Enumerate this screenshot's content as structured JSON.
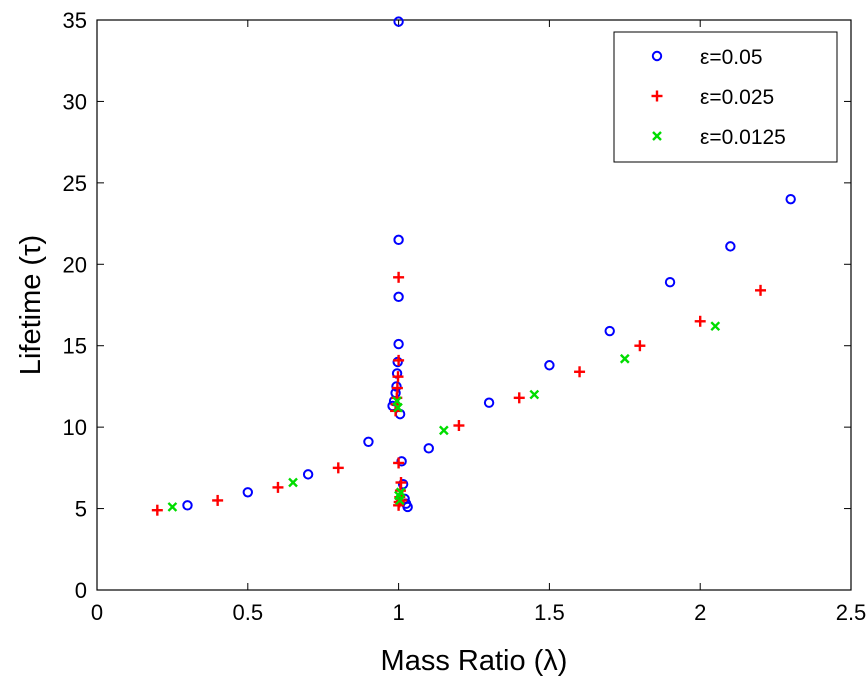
{
  "chart_data": {
    "type": "scatter",
    "title": "",
    "xlabel": "Mass Ratio (λ)",
    "ylabel": "Lifetime (τ)",
    "xlim": [
      0,
      2.5
    ],
    "ylim": [
      0,
      35
    ],
    "xticks": [
      "0",
      "0.5",
      "1",
      "1.5",
      "2",
      "2.5"
    ],
    "yticks": [
      "0",
      "5",
      "10",
      "15",
      "20",
      "25",
      "30",
      "35"
    ],
    "grid": false,
    "legend_position": "top-right",
    "series": [
      {
        "name": "ε=0.05",
        "marker": "circle",
        "color": "#0000ff",
        "x": [
          0.3,
          0.5,
          0.7,
          0.9,
          0.98,
          0.985,
          0.99,
          0.993,
          0.995,
          0.997,
          1.0,
          1.0,
          1.0,
          1.0,
          1.005,
          1.01,
          1.015,
          1.02,
          1.025,
          1.03,
          1.1,
          1.3,
          1.5,
          1.7,
          1.9,
          2.1,
          2.3
        ],
        "y": [
          5.2,
          6.0,
          7.1,
          9.1,
          11.3,
          11.6,
          12.1,
          12.5,
          13.3,
          14.0,
          15.1,
          18.0,
          21.5,
          34.9,
          10.8,
          7.9,
          6.5,
          5.6,
          5.3,
          5.1,
          8.7,
          11.5,
          13.8,
          15.9,
          18.9,
          21.1,
          24.0
        ]
      },
      {
        "name": "ε=0.025",
        "marker": "plus",
        "color": "#ff0000",
        "x": [
          0.2,
          0.4,
          0.6,
          0.8,
          0.99,
          0.992,
          0.994,
          0.996,
          0.998,
          1.0,
          1.0,
          1.0,
          1.0,
          1.002,
          1.004,
          1.006,
          1.008,
          1.01,
          1.2,
          1.4,
          1.6,
          1.8,
          2.0,
          2.2
        ],
        "y": [
          4.9,
          5.5,
          6.3,
          7.5,
          11.0,
          11.4,
          11.8,
          12.4,
          13.1,
          14.1,
          19.2,
          7.8,
          5.2,
          5.4,
          5.7,
          6.1,
          6.6,
          5.5,
          10.1,
          11.8,
          13.4,
          15.0,
          16.5,
          18.4
        ]
      },
      {
        "name": "ε=0.0125",
        "marker": "x",
        "color": "#00dd00",
        "x": [
          0.25,
          0.65,
          0.995,
          0.998,
          1.001,
          1.004,
          1.007,
          1.15,
          1.45,
          1.75,
          2.05
        ],
        "y": [
          5.1,
          6.6,
          11.6,
          11.2,
          5.8,
          5.5,
          6.0,
          9.8,
          12.0,
          14.2,
          16.2
        ]
      }
    ]
  }
}
